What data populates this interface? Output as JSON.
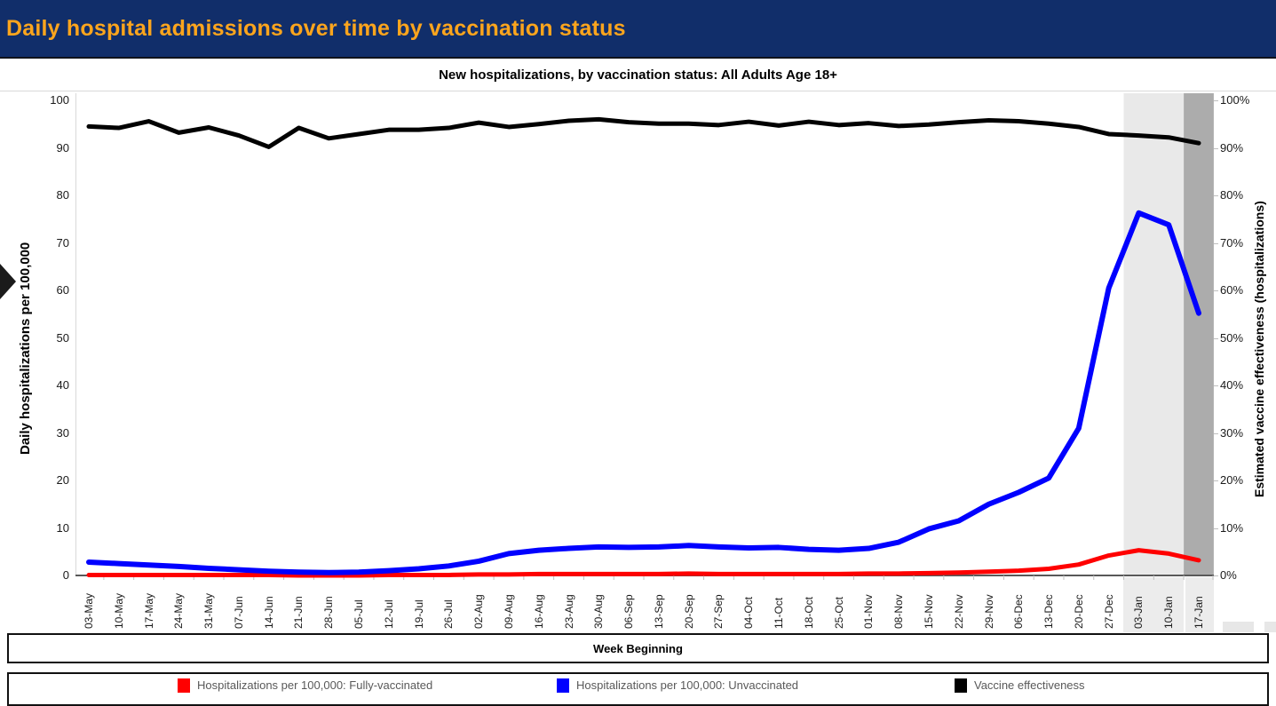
{
  "header": {
    "title": "Daily hospital admissions over time by vaccination status",
    "bg_color": "#112E6A",
    "title_color": "#FCA51D"
  },
  "chart": {
    "subtitle": "New hospitalizations, by vaccination status: All Adults Age 18+",
    "left_axis": {
      "min": 0,
      "max": 100,
      "step": 10,
      "suffix": ""
    },
    "right_axis": {
      "min": 0,
      "max": 100,
      "step": 10,
      "suffix": "%"
    }
  },
  "chart_data": {
    "type": "line",
    "title": "New hospitalizations, by vaccination status: All Adults Age 18+",
    "xlabel": "Week Beginning",
    "ylabel_left": "Daily hospitalizations per 100,000",
    "ylabel_right": "Estimated vaccine effectiveness (hospitalizations)",
    "ylim_left": [
      0,
      100
    ],
    "ylim_right_pct": [
      0,
      100
    ],
    "grid": false,
    "legend_position": "bottom",
    "categories": [
      "03-May",
      "10-May",
      "17-May",
      "24-May",
      "31-May",
      "07-Jun",
      "14-Jun",
      "21-Jun",
      "28-Jun",
      "05-Jul",
      "12-Jul",
      "19-Jul",
      "26-Jul",
      "02-Aug",
      "09-Aug",
      "16-Aug",
      "23-Aug",
      "30-Aug",
      "06-Sep",
      "13-Sep",
      "20-Sep",
      "27-Sep",
      "04-Oct",
      "11-Oct",
      "18-Oct",
      "25-Oct",
      "01-Nov",
      "08-Nov",
      "15-Nov",
      "22-Nov",
      "29-Nov",
      "06-Dec",
      "13-Dec",
      "20-Dec",
      "27-Dec",
      "03-Jan",
      "10-Jan",
      "17-Jan"
    ],
    "series": [
      {
        "name": "Hospitalizations per 100,000: Fully-vaccinated",
        "color": "#FF0000",
        "axis": "left",
        "values": [
          0.1,
          0.1,
          0.1,
          0.1,
          0.1,
          0.1,
          0.1,
          0.0,
          0.0,
          0.0,
          0.1,
          0.1,
          0.1,
          0.2,
          0.2,
          0.3,
          0.3,
          0.3,
          0.3,
          0.3,
          0.4,
          0.3,
          0.3,
          0.3,
          0.3,
          0.3,
          0.4,
          0.4,
          0.5,
          0.6,
          0.8,
          1.0,
          1.4,
          2.3,
          4.2,
          5.3,
          4.6,
          3.2
        ]
      },
      {
        "name": "Hospitalizations per 100,000: Unvaccinated",
        "color": "#0000FF",
        "axis": "left",
        "values": [
          2.8,
          2.5,
          2.2,
          1.9,
          1.5,
          1.2,
          0.9,
          0.7,
          0.6,
          0.7,
          1.0,
          1.4,
          2.0,
          3.0,
          4.6,
          5.3,
          5.7,
          6.0,
          5.9,
          6.0,
          6.3,
          6.0,
          5.8,
          5.9,
          5.5,
          5.3,
          5.7,
          7.0,
          9.8,
          11.5,
          15.0,
          17.5,
          20.5,
          31.0,
          60.5,
          76.3,
          73.8,
          55.2
        ]
      },
      {
        "name": "Vaccine effectiveness",
        "color": "#000000",
        "axis": "right_pct",
        "values": [
          94.5,
          94.2,
          95.6,
          93.2,
          94.3,
          92.6,
          90.2,
          94.2,
          92.0,
          92.9,
          93.8,
          93.8,
          94.2,
          95.3,
          94.4,
          95.0,
          95.7,
          96.0,
          95.4,
          95.1,
          95.1,
          94.8,
          95.5,
          94.7,
          95.5,
          94.8,
          95.2,
          94.6,
          94.9,
          95.4,
          95.8,
          95.6,
          95.1,
          94.4,
          92.9,
          92.6,
          92.2,
          91.0
        ]
      }
    ],
    "highlight_bands": [
      {
        "from": "03-Jan",
        "to": "10-Jan",
        "color": "#E9E9E9"
      },
      {
        "from": "17-Jan",
        "to": "17-Jan",
        "color": "#ACACAC"
      }
    ]
  }
}
